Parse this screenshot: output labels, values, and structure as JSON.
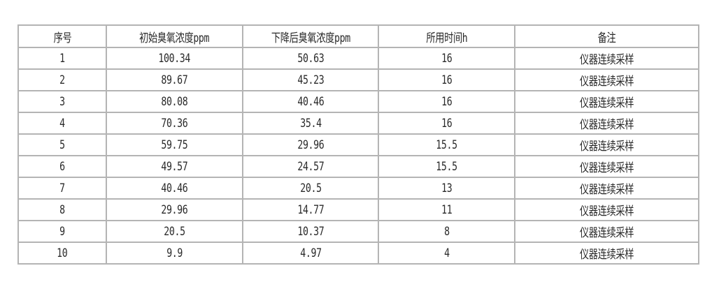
{
  "table": {
    "headers": [
      "序号",
      "初始臭氧浓度ppm",
      "下降后臭氧浓度ppm",
      "所用时间h",
      "备注"
    ],
    "rows": [
      [
        "1",
        "100.34",
        "50.63",
        "16",
        "仪器连续采样"
      ],
      [
        "2",
        "89.67",
        "45.23",
        "16",
        "仪器连续采样"
      ],
      [
        "3",
        "80.08",
        "40.46",
        "16",
        "仪器连续采样"
      ],
      [
        "4",
        "70.36",
        "35.4",
        "16",
        "仪器连续采样"
      ],
      [
        "5",
        "59.75",
        "29.96",
        "15.5",
        "仪器连续采样"
      ],
      [
        "6",
        "49.57",
        "24.57",
        "15.5",
        "仪器连续采样"
      ],
      [
        "7",
        "40.46",
        "20.5",
        "13",
        "仪器连续采样"
      ],
      [
        "8",
        "29.96",
        "14.77",
        "11",
        "仪器连续采样"
      ],
      [
        "9",
        "20.5",
        "10.37",
        "8",
        "仪器连续采样"
      ],
      [
        "10",
        "9.9",
        "4.97",
        "4",
        "仪器连续采样"
      ]
    ]
  }
}
